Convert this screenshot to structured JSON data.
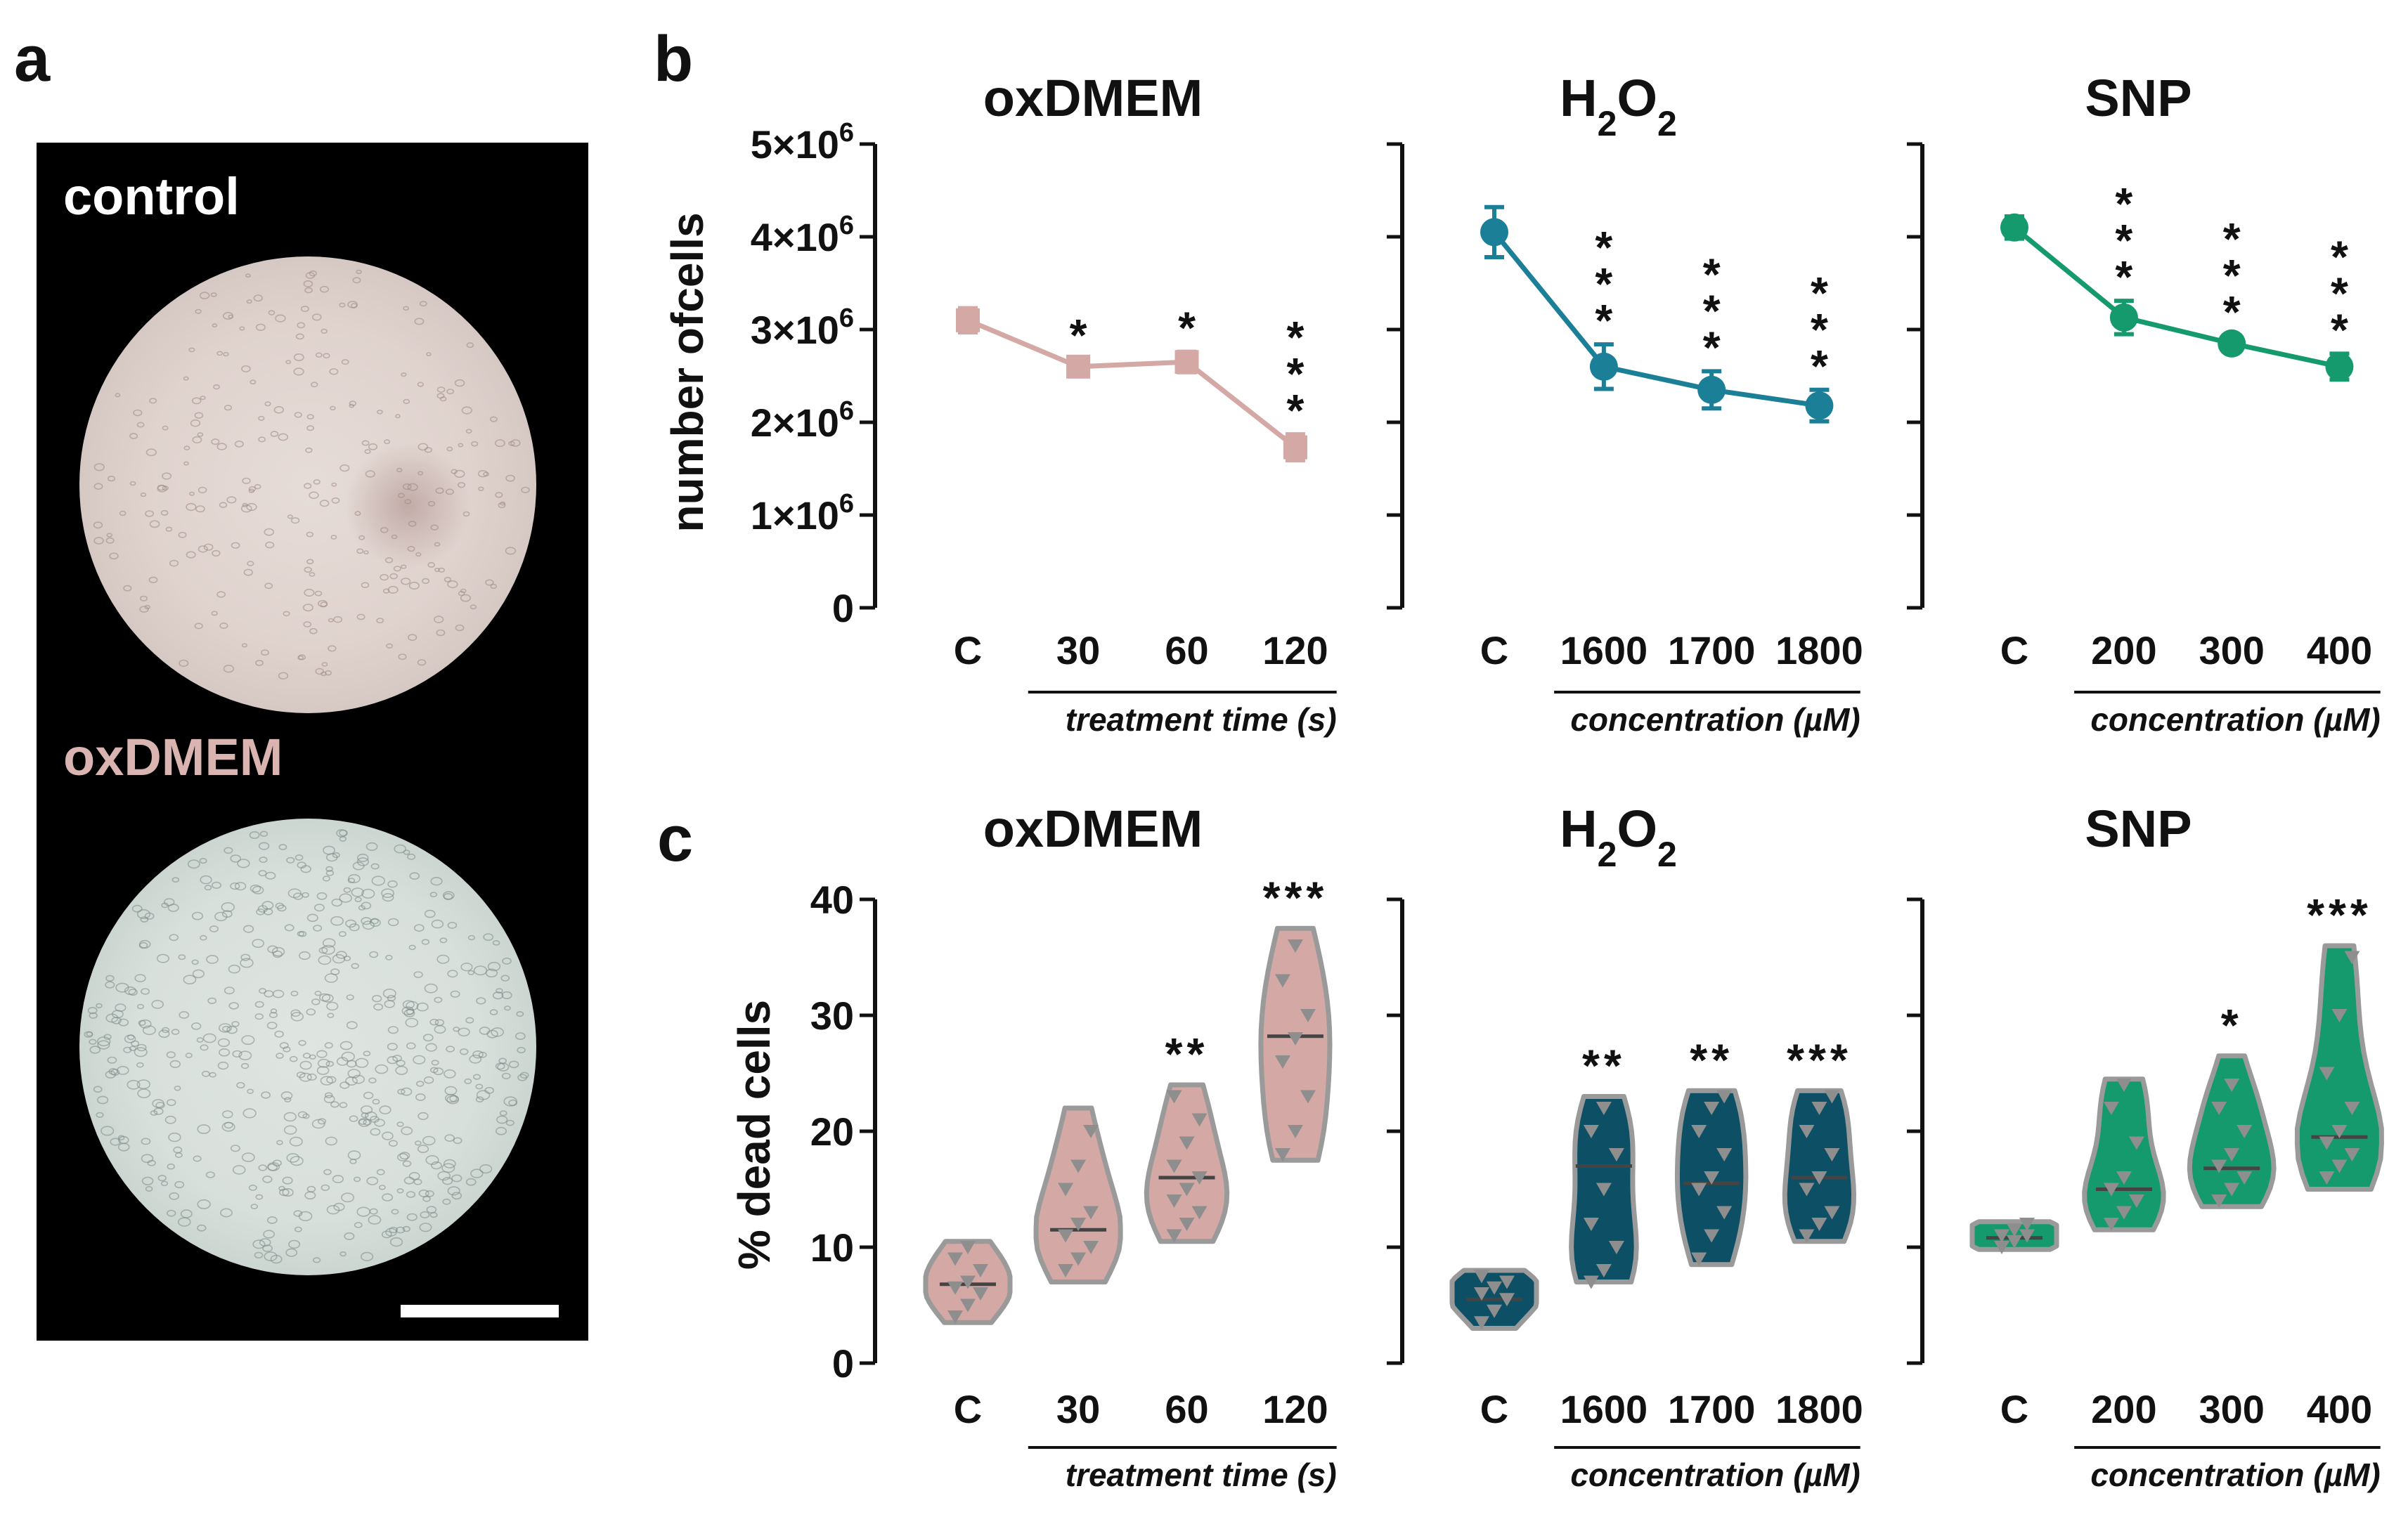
{
  "panel_labels": {
    "a": "a",
    "b": "b",
    "c": "c"
  },
  "photos": {
    "control_label": "control",
    "oxdmem_label": "oxDMEM",
    "oxdmem_label_color": "#d9b4b0"
  },
  "colors": {
    "oxDMEM": "#d4a8a4",
    "H2O2": "#1b7f98",
    "SNP": "#159a6e",
    "H2O2_violin": "#0d5066",
    "violin_outline": "#9a9a9a",
    "median": "#444444"
  },
  "chart_data": [
    {
      "id": "b-oxDMEM",
      "type": "line",
      "title": "oxDMEM",
      "ylabel": "number ofcells",
      "yticks": [
        "0",
        "1×10",
        "2×10",
        "3×10",
        "4×10",
        "5×10"
      ],
      "ytick_exponent": "6",
      "ylim": [
        0,
        5000000
      ],
      "categories": [
        "C",
        "30",
        "60",
        "120"
      ],
      "xlabel": "treatment time (s)",
      "values": [
        3100000,
        2600000,
        2650000,
        1730000
      ],
      "errors": [
        130000,
        80000,
        110000,
        140000
      ],
      "significance": [
        "",
        "*",
        "*",
        "***"
      ],
      "significance_stacked": true
    },
    {
      "id": "b-H2O2",
      "type": "line",
      "title": "H",
      "title_sub": "2",
      "title_mid": "O",
      "title_sub2": "2",
      "ylim": [
        0,
        5000000
      ],
      "categories": [
        "C",
        "1600",
        "1700",
        "1800"
      ],
      "xlabel": "concentration (µM)",
      "values": [
        4050000,
        2600000,
        2350000,
        2180000
      ],
      "errors": [
        270000,
        240000,
        200000,
        170000
      ],
      "significance": [
        "",
        "***",
        "***",
        "***"
      ],
      "significance_stacked": true
    },
    {
      "id": "b-SNP",
      "type": "line",
      "title": "SNP",
      "ylim": [
        0,
        5000000
      ],
      "categories": [
        "C",
        "200",
        "300",
        "400"
      ],
      "xlabel": "concentration (µM)",
      "values": [
        4100000,
        3130000,
        2850000,
        2600000
      ],
      "errors": [
        120000,
        180000,
        80000,
        140000
      ],
      "significance": [
        "",
        "***",
        "***",
        "***"
      ],
      "significance_stacked": true
    },
    {
      "id": "c-oxDMEM",
      "type": "violin",
      "title": "oxDMEM",
      "ylabel": "% dead cells",
      "yticks": [
        "0",
        "10",
        "20",
        "30",
        "40"
      ],
      "ylim": [
        0,
        40
      ],
      "categories": [
        "C",
        "30",
        "60",
        "120"
      ],
      "xlabel": "treatment time (s)",
      "groups": [
        {
          "points": [
            4,
            5,
            6,
            6.5,
            7,
            8,
            9,
            10
          ],
          "median": 6.8,
          "min": 3.5,
          "max": 10.5
        },
        {
          "points": [
            8,
            9,
            10,
            11,
            12,
            13,
            15,
            17,
            20
          ],
          "median": 11.5,
          "min": 7,
          "max": 22
        },
        {
          "points": [
            11,
            12,
            13,
            14,
            15,
            16,
            17,
            19,
            21,
            23
          ],
          "median": 16,
          "min": 10.5,
          "max": 24
        },
        {
          "points": [
            18,
            20,
            23,
            26,
            28,
            30,
            33,
            36
          ],
          "median": 28.2,
          "min": 17.5,
          "max": 37.5
        }
      ],
      "significance": [
        "",
        "",
        "**",
        "***"
      ]
    },
    {
      "id": "c-H2O2",
      "type": "violin",
      "title": "H",
      "title_sub": "2",
      "title_mid": "O",
      "title_sub2": "2",
      "ylim": [
        0,
        40
      ],
      "categories": [
        "C",
        "1600",
        "1700",
        "1800"
      ],
      "xlabel": "concentration (µM)",
      "groups": [
        {
          "points": [
            3.5,
            4.5,
            5.5,
            6,
            6.5,
            7,
            7.5
          ],
          "median": 5.5,
          "min": 3,
          "max": 8
        },
        {
          "points": [
            7,
            8,
            10,
            12,
            15,
            18,
            20,
            22
          ],
          "median": 17,
          "min": 7,
          "max": 23
        },
        {
          "points": [
            9,
            11,
            13,
            15,
            16,
            18,
            20,
            22,
            23
          ],
          "median": 15.5,
          "min": 8.5,
          "max": 23.5
        },
        {
          "points": [
            11,
            12,
            13,
            15,
            16,
            18,
            20,
            22,
            23
          ],
          "median": 16,
          "min": 10.5,
          "max": 23.5
        }
      ],
      "significance": [
        "",
        "**",
        "**",
        "***"
      ]
    },
    {
      "id": "c-SNP",
      "type": "violin",
      "title": "SNP",
      "ylim": [
        0,
        40
      ],
      "categories": [
        "C",
        "200",
        "300",
        "400"
      ],
      "xlabel": "concentration (µM)",
      "groups": [
        {
          "points": [
            10,
            10.5,
            11,
            11,
            11.5,
            12
          ],
          "median": 10.8,
          "min": 9.8,
          "max": 12.2
        },
        {
          "points": [
            12,
            13,
            14,
            15,
            16,
            19,
            22,
            24
          ],
          "median": 15,
          "min": 11.5,
          "max": 24.5
        },
        {
          "points": [
            14,
            15,
            16,
            17,
            18,
            20,
            22,
            24
          ],
          "median": 16.8,
          "min": 13.5,
          "max": 26.5
        },
        {
          "points": [
            16,
            17,
            18,
            19,
            20,
            22,
            25,
            30,
            35
          ],
          "median": 19.5,
          "min": 15,
          "max": 36
        }
      ],
      "significance": [
        "",
        "",
        "*",
        "***"
      ]
    }
  ]
}
